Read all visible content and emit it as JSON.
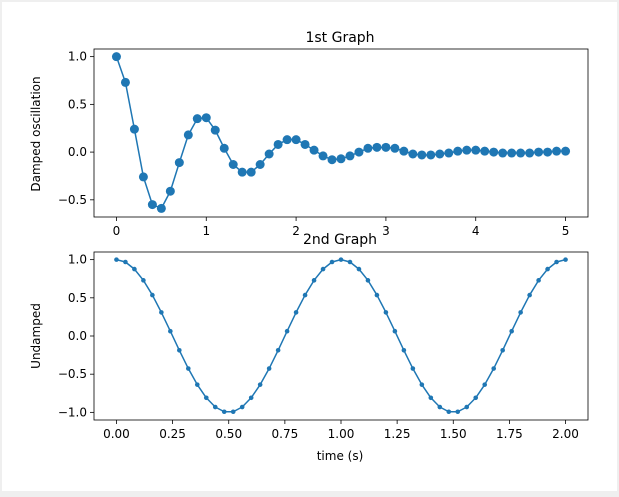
{
  "figure": {
    "background": "#efefef",
    "canvas": "#ffffff"
  },
  "chart_data": [
    {
      "type": "line",
      "title": "1st Graph",
      "xlabel": "",
      "ylabel": "Damped oscillation",
      "xlim": [
        -0.25,
        5.25
      ],
      "ylim": [
        -0.68,
        1.08
      ],
      "xticks": [
        0,
        1,
        2,
        3,
        4,
        5
      ],
      "yticks": [
        -0.5,
        0.0,
        0.5,
        1.0
      ],
      "xtick_labels": [
        "0",
        "1",
        "2",
        "3",
        "4",
        "5"
      ],
      "ytick_labels": [
        "−0.5",
        "0.0",
        "0.5",
        "1.0"
      ],
      "grid": false,
      "marker": "circle-large",
      "color": "#1f77b4",
      "series": [
        {
          "x": [
            0.0,
            0.1,
            0.2,
            0.3,
            0.4,
            0.5,
            0.6,
            0.7,
            0.8,
            0.9,
            1.0,
            1.1,
            1.2,
            1.3,
            1.4,
            1.5,
            1.6,
            1.7,
            1.8,
            1.9,
            2.0,
            2.1,
            2.2,
            2.3,
            2.4,
            2.5,
            2.6,
            2.7,
            2.8,
            2.9,
            3.0,
            3.1,
            3.2,
            3.3,
            3.4,
            3.5,
            3.6,
            3.7,
            3.8,
            3.9,
            4.0,
            4.1,
            4.2,
            4.3,
            4.4,
            4.5,
            4.6,
            4.7,
            4.8,
            4.9,
            5.0
          ],
          "y": [
            1.0,
            0.73,
            0.24,
            -0.26,
            -0.55,
            -0.59,
            -0.41,
            -0.11,
            0.18,
            0.35,
            0.36,
            0.23,
            0.04,
            -0.13,
            -0.21,
            -0.21,
            -0.13,
            -0.02,
            0.08,
            0.13,
            0.13,
            0.08,
            0.02,
            -0.04,
            -0.08,
            -0.07,
            -0.04,
            0.0,
            0.04,
            0.05,
            0.05,
            0.04,
            0.01,
            -0.02,
            -0.03,
            -0.03,
            -0.02,
            -0.01,
            0.01,
            0.02,
            0.02,
            0.01,
            0.0,
            -0.01,
            -0.01,
            -0.01,
            -0.01,
            0.0,
            0.0,
            0.01,
            0.01
          ]
        }
      ]
    },
    {
      "type": "line",
      "title": "2nd Graph",
      "xlabel": "time (s)",
      "ylabel": "Undamped",
      "xlim": [
        -0.1,
        2.1
      ],
      "ylim": [
        -1.1,
        1.1
      ],
      "xticks": [
        0.0,
        0.25,
        0.5,
        0.75,
        1.0,
        1.25,
        1.5,
        1.75,
        2.0
      ],
      "yticks": [
        -1.0,
        -0.5,
        0.0,
        0.5,
        1.0
      ],
      "xtick_labels": [
        "0.00",
        "0.25",
        "0.50",
        "0.75",
        "1.00",
        "1.25",
        "1.50",
        "1.75",
        "2.00"
      ],
      "ytick_labels": [
        "−1.0",
        "−0.5",
        "0.0",
        "0.5",
        "1.0"
      ],
      "grid": false,
      "marker": "circle-small",
      "color": "#1f77b4",
      "series": [
        {
          "x": [
            0.0,
            0.04,
            0.08,
            0.12,
            0.16,
            0.2,
            0.24,
            0.28,
            0.32,
            0.36,
            0.4,
            0.44,
            0.48,
            0.52,
            0.56,
            0.6,
            0.64,
            0.68,
            0.72,
            0.76,
            0.8,
            0.84,
            0.88,
            0.92,
            0.96,
            1.0,
            1.04,
            1.08,
            1.12,
            1.16,
            1.2,
            1.24,
            1.28,
            1.32,
            1.36,
            1.4,
            1.44,
            1.48,
            1.52,
            1.56,
            1.6,
            1.64,
            1.68,
            1.72,
            1.76,
            1.8,
            1.84,
            1.88,
            1.92,
            1.96,
            2.0
          ],
          "y": [
            1.0,
            0.969,
            0.876,
            0.729,
            0.536,
            0.309,
            0.063,
            -0.187,
            -0.426,
            -0.637,
            -0.809,
            -0.93,
            -0.992,
            -0.992,
            -0.93,
            -0.809,
            -0.637,
            -0.426,
            -0.187,
            0.063,
            0.309,
            0.536,
            0.729,
            0.876,
            0.969,
            1.0,
            0.969,
            0.876,
            0.729,
            0.536,
            0.309,
            0.063,
            -0.187,
            -0.426,
            -0.637,
            -0.809,
            -0.93,
            -0.992,
            -0.992,
            -0.93,
            -0.809,
            -0.637,
            -0.426,
            -0.187,
            0.063,
            0.309,
            0.536,
            0.729,
            0.876,
            0.969,
            1.0
          ]
        }
      ]
    }
  ]
}
